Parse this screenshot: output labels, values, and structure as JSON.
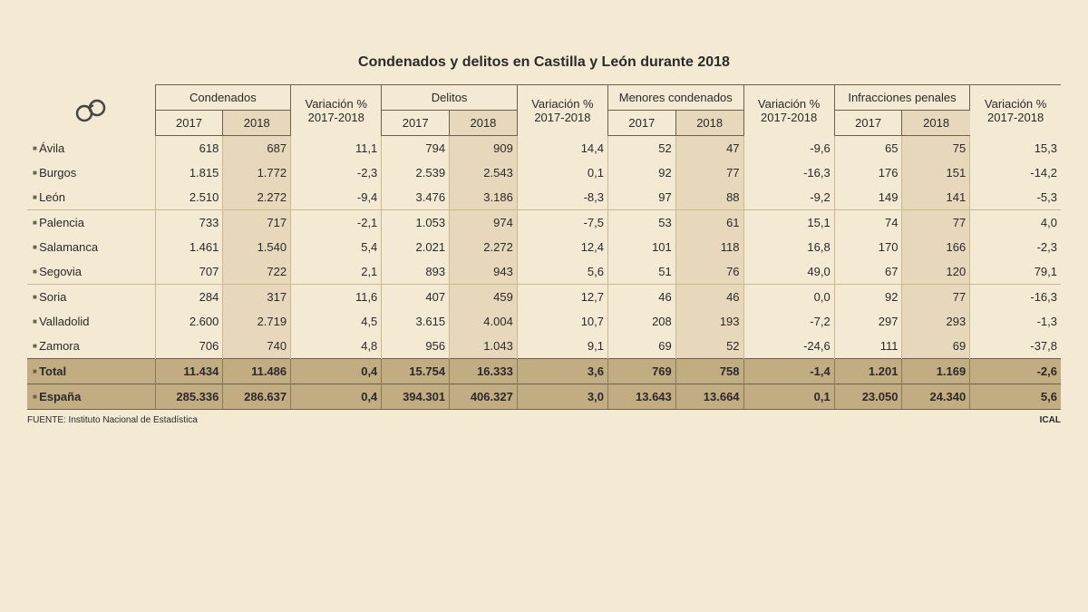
{
  "title": "Condenados y delitos en Castilla y León durante 2018",
  "headers": {
    "groups": [
      "Condenados",
      "Variación % 2017-2018",
      "Delitos",
      "Variación % 2017-2018",
      "Menores condenados",
      "Variación % 2017-2018",
      "Infracciones penales",
      "Variación % 2017-2018"
    ],
    "years": [
      "2017",
      "2018"
    ]
  },
  "rows": [
    {
      "label": "Ávila",
      "c17": "618",
      "c18": "687",
      "cv": "11,1",
      "d17": "794",
      "d18": "909",
      "dv": "14,4",
      "m17": "52",
      "m18": "47",
      "mv": "-9,6",
      "i17": "65",
      "i18": "75",
      "iv": "15,3"
    },
    {
      "label": "Burgos",
      "c17": "1.815",
      "c18": "1.772",
      "cv": "-2,3",
      "d17": "2.539",
      "d18": "2.543",
      "dv": "0,1",
      "m17": "92",
      "m18": "77",
      "mv": "-16,3",
      "i17": "176",
      "i18": "151",
      "iv": "-14,2"
    },
    {
      "label": "León",
      "c17": "2.510",
      "c18": "2.272",
      "cv": "-9,4",
      "d17": "3.476",
      "d18": "3.186",
      "dv": "-8,3",
      "m17": "97",
      "m18": "88",
      "mv": "-9,2",
      "i17": "149",
      "i18": "141",
      "iv": "-5,3"
    },
    {
      "label": "Palencia",
      "c17": "733",
      "c18": "717",
      "cv": "-2,1",
      "d17": "1.053",
      "d18": "974",
      "dv": "-7,5",
      "m17": "53",
      "m18": "61",
      "mv": "15,1",
      "i17": "74",
      "i18": "77",
      "iv": "4,0"
    },
    {
      "label": "Salamanca",
      "c17": "1.461",
      "c18": "1.540",
      "cv": "5,4",
      "d17": "2.021",
      "d18": "2.272",
      "dv": "12,4",
      "m17": "101",
      "m18": "118",
      "mv": "16,8",
      "i17": "170",
      "i18": "166",
      "iv": "-2,3"
    },
    {
      "label": "Segovia",
      "c17": "707",
      "c18": "722",
      "cv": "2,1",
      "d17": "893",
      "d18": "943",
      "dv": "5,6",
      "m17": "51",
      "m18": "76",
      "mv": "49,0",
      "i17": "67",
      "i18": "120",
      "iv": "79,1"
    },
    {
      "label": "Soria",
      "c17": "284",
      "c18": "317",
      "cv": "11,6",
      "d17": "407",
      "d18": "459",
      "dv": "12,7",
      "m17": "46",
      "m18": "46",
      "mv": "0,0",
      "i17": "92",
      "i18": "77",
      "iv": "-16,3"
    },
    {
      "label": "Valladolid",
      "c17": "2.600",
      "c18": "2.719",
      "cv": "4,5",
      "d17": "3.615",
      "d18": "4.004",
      "dv": "10,7",
      "m17": "208",
      "m18": "193",
      "mv": "-7,2",
      "i17": "297",
      "i18": "293",
      "iv": "-1,3"
    },
    {
      "label": "Zamora",
      "c17": "706",
      "c18": "740",
      "cv": "4,8",
      "d17": "956",
      "d18": "1.043",
      "dv": "9,1",
      "m17": "69",
      "m18": "52",
      "mv": "-24,6",
      "i17": "111",
      "i18": "69",
      "iv": "-37,8"
    }
  ],
  "totals": [
    {
      "label": "Total",
      "c17": "11.434",
      "c18": "11.486",
      "cv": "0,4",
      "d17": "15.754",
      "d18": "16.333",
      "dv": "3,6",
      "m17": "769",
      "m18": "758",
      "mv": "-1,4",
      "i17": "1.201",
      "i18": "1.169",
      "iv": "-2,6"
    },
    {
      "label": "España",
      "c17": "285.336",
      "c18": "286.637",
      "cv": "0,4",
      "d17": "394.301",
      "d18": "406.327",
      "dv": "3,0",
      "m17": "13.643",
      "m18": "13.664",
      "mv": "0,1",
      "i17": "23.050",
      "i18": "24.340",
      "iv": "5,6"
    }
  ],
  "footer": {
    "source": "FUENTE: Instituto Nacional de Estadística",
    "credit": "ICAL"
  },
  "styling": {
    "background": "#f4e9d3",
    "shade_bg": "#e7d8bb",
    "total_bg": "#c2ad83",
    "border_dark": "#6a604d",
    "border_light": "#c8b98f",
    "title_fontsize": 16,
    "body_fontsize": 13,
    "footer_fontsize": 10
  }
}
